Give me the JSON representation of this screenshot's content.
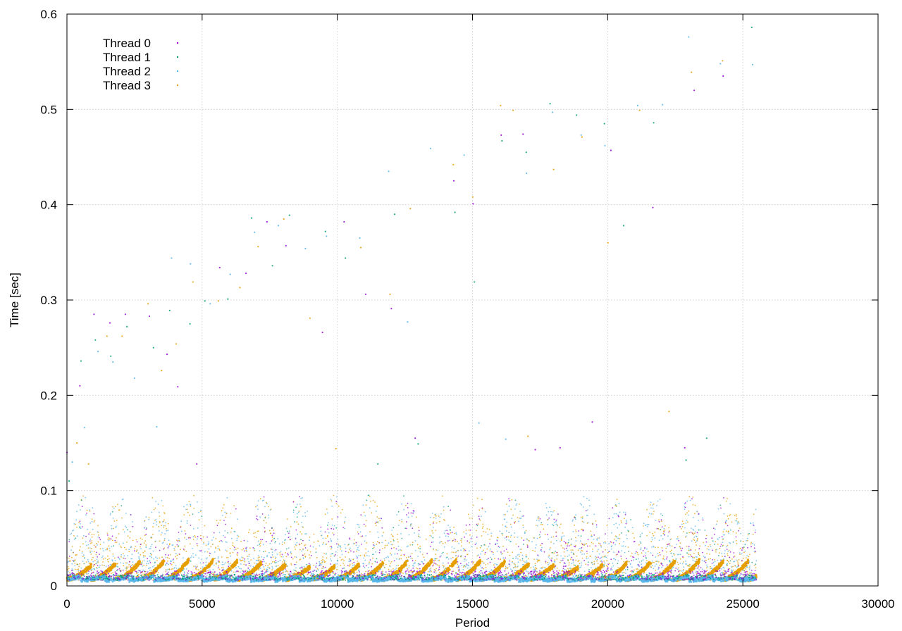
{
  "chart_data": {
    "type": "scatter",
    "title": "",
    "xlabel": "Period",
    "ylabel": "Time [sec]",
    "xlim": [
      0,
      30000
    ],
    "ylim": [
      0,
      0.6
    ],
    "xticks": [
      0,
      5000,
      10000,
      15000,
      20000,
      25000,
      30000
    ],
    "yticks": [
      0,
      0.1,
      0.2,
      0.3,
      0.4,
      0.5,
      0.6
    ],
    "xtick_labels": [
      "0",
      "5000",
      "10000",
      "15000",
      "20000",
      "25000",
      "30000"
    ],
    "ytick_labels": [
      "0",
      "0.1",
      "0.2",
      "0.3",
      "0.4",
      "0.5",
      "0.6"
    ],
    "grid": true,
    "legend_position": "top-left",
    "series": [
      {
        "name": "Thread 0",
        "color": "#9400d3"
      },
      {
        "name": "Thread 1",
        "color": "#009e73"
      },
      {
        "name": "Thread 2",
        "color": "#56b4e9"
      },
      {
        "name": "Thread 3",
        "color": "#e69f00"
      }
    ],
    "outliers": [
      [
        0,
        0.14
      ],
      [
        80,
        0.11
      ],
      [
        200,
        0.13
      ],
      [
        370,
        0.15
      ],
      [
        480,
        0.21
      ],
      [
        520,
        0.236
      ],
      [
        650,
        0.166
      ],
      [
        800,
        0.128
      ],
      [
        1000,
        0.285
      ],
      [
        1050,
        0.258
      ],
      [
        1150,
        0.246
      ],
      [
        1480,
        0.262
      ],
      [
        1590,
        0.276
      ],
      [
        1620,
        0.241
      ],
      [
        1700,
        0.235
      ],
      [
        2040,
        0.262
      ],
      [
        2160,
        0.285
      ],
      [
        2220,
        0.272
      ],
      [
        2500,
        0.218
      ],
      [
        3000,
        0.296
      ],
      [
        3050,
        0.283
      ],
      [
        3200,
        0.25
      ],
      [
        3320,
        0.167
      ],
      [
        3500,
        0.226
      ],
      [
        3700,
        0.243
      ],
      [
        3800,
        0.289
      ],
      [
        3870,
        0.344
      ],
      [
        4040,
        0.254
      ],
      [
        4100,
        0.209
      ],
      [
        4550,
        0.275
      ],
      [
        4570,
        0.338
      ],
      [
        4660,
        0.319
      ],
      [
        4800,
        0.128
      ],
      [
        5100,
        0.299
      ],
      [
        5300,
        0.296
      ],
      [
        5600,
        0.299
      ],
      [
        5650,
        0.334
      ],
      [
        5950,
        0.301
      ],
      [
        6040,
        0.327
      ],
      [
        6400,
        0.313
      ],
      [
        6620,
        0.328
      ],
      [
        6830,
        0.386
      ],
      [
        6940,
        0.371
      ],
      [
        7070,
        0.356
      ],
      [
        7400,
        0.382
      ],
      [
        7600,
        0.336
      ],
      [
        7820,
        0.378
      ],
      [
        8020,
        0.385
      ],
      [
        8100,
        0.357
      ],
      [
        8230,
        0.389
      ],
      [
        8820,
        0.354
      ],
      [
        8990,
        0.281
      ],
      [
        9450,
        0.266
      ],
      [
        9560,
        0.372
      ],
      [
        9600,
        0.367
      ],
      [
        9950,
        0.144
      ],
      [
        10250,
        0.382
      ],
      [
        10300,
        0.344
      ],
      [
        10830,
        0.365
      ],
      [
        10870,
        0.355
      ],
      [
        11050,
        0.306
      ],
      [
        11500,
        0.128
      ],
      [
        11900,
        0.435
      ],
      [
        11950,
        0.306
      ],
      [
        12000,
        0.291
      ],
      [
        12120,
        0.39
      ],
      [
        12600,
        0.277
      ],
      [
        12700,
        0.396
      ],
      [
        12880,
        0.155
      ],
      [
        12990,
        0.149
      ],
      [
        13450,
        0.459
      ],
      [
        14290,
        0.442
      ],
      [
        14310,
        0.425
      ],
      [
        14350,
        0.392
      ],
      [
        14690,
        0.452
      ],
      [
        15010,
        0.408
      ],
      [
        15020,
        0.401
      ],
      [
        15070,
        0.319
      ],
      [
        15240,
        0.171
      ],
      [
        16040,
        0.504
      ],
      [
        16060,
        0.473
      ],
      [
        16090,
        0.467
      ],
      [
        16230,
        0.154
      ],
      [
        16500,
        0.499
      ],
      [
        16870,
        0.474
      ],
      [
        16990,
        0.455
      ],
      [
        17000,
        0.433
      ],
      [
        17050,
        0.157
      ],
      [
        17320,
        0.143
      ],
      [
        17870,
        0.506
      ],
      [
        17960,
        0.497
      ],
      [
        18000,
        0.437
      ],
      [
        18240,
        0.145
      ],
      [
        18850,
        0.494
      ],
      [
        19020,
        0.473
      ],
      [
        19050,
        0.471
      ],
      [
        19430,
        0.172
      ],
      [
        19880,
        0.485
      ],
      [
        19900,
        0.462
      ],
      [
        20010,
        0.36
      ],
      [
        20120,
        0.457
      ],
      [
        20590,
        0.378
      ],
      [
        21110,
        0.504
      ],
      [
        21180,
        0.499
      ],
      [
        21670,
        0.397
      ],
      [
        21700,
        0.486
      ],
      [
        22030,
        0.505
      ],
      [
        22270,
        0.183
      ],
      [
        22850,
        0.145
      ],
      [
        22900,
        0.132
      ],
      [
        23000,
        0.576
      ],
      [
        23100,
        0.539
      ],
      [
        23200,
        0.52
      ],
      [
        23660,
        0.155
      ],
      [
        24170,
        0.548
      ],
      [
        24250,
        0.551
      ],
      [
        24270,
        0.535
      ],
      [
        25330,
        0.586
      ],
      [
        25360,
        0.547
      ]
    ]
  }
}
